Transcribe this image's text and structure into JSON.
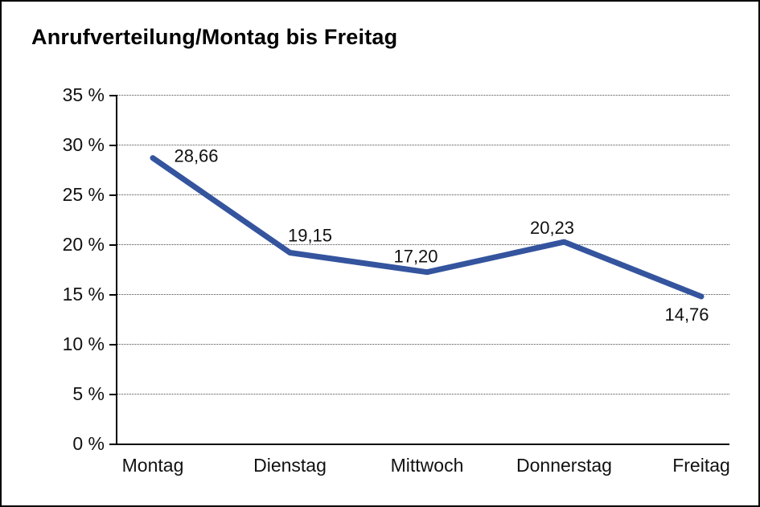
{
  "title": "Anrufverteilung/Montag bis Freitag",
  "colors": {
    "line": "#34549e",
    "axis": "#000000",
    "grid": "#4a4a4a",
    "text": "#111111",
    "background": "#ffffff",
    "frame_border": "#000000"
  },
  "chart_data": {
    "type": "line",
    "title": "Anrufverteilung/Montag bis Freitag",
    "categories": [
      "Montag",
      "Dienstag",
      "Mittwoch",
      "Donnerstag",
      "Freitag"
    ],
    "values": [
      28.66,
      19.15,
      17.2,
      20.23,
      14.76
    ],
    "point_labels": [
      "28,66",
      "19,15",
      "17,20",
      "20,23",
      "14,76"
    ],
    "xlabel": "",
    "ylabel": "",
    "ylim": [
      0,
      35
    ],
    "ytick_step": 5,
    "ytick_labels": [
      "35 %",
      "30 %",
      "25 %",
      "20 %",
      "15 %",
      "10 %",
      "5 %",
      "0 %"
    ],
    "grid": "horizontal dotted",
    "legend_position": "none",
    "line_width": 7
  }
}
